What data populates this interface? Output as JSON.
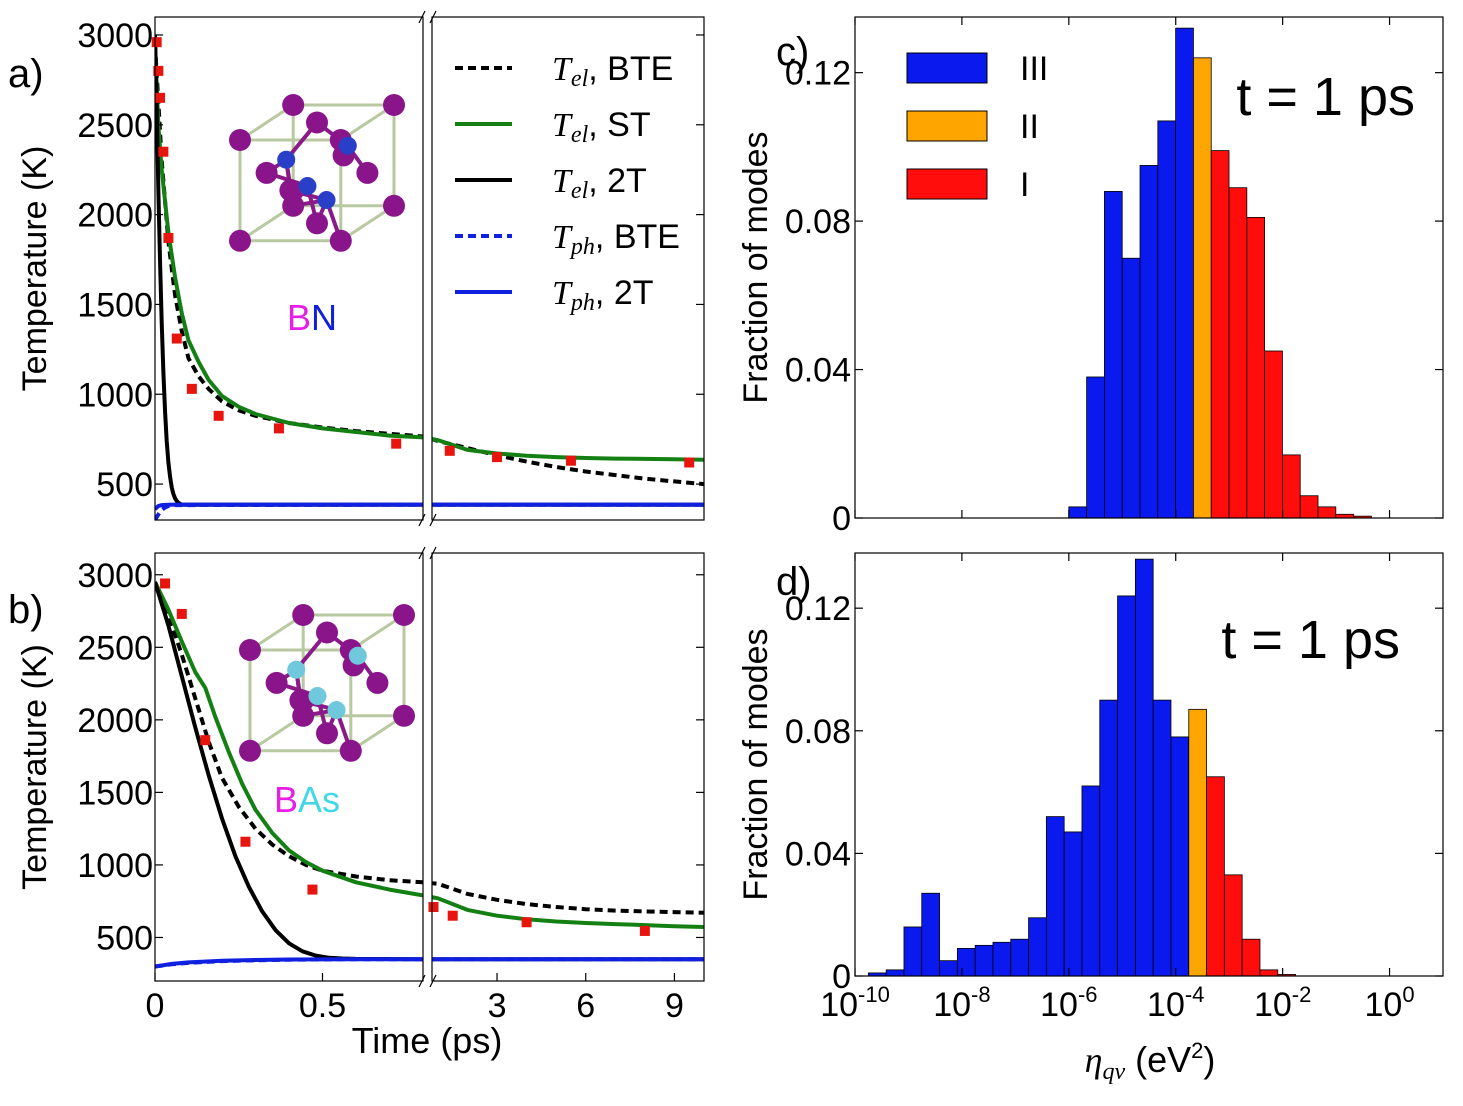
{
  "chart_data": [
    {
      "id": "a",
      "panel_label": "a)",
      "type": "line",
      "ylabel": "Temperature (K)",
      "yticks": [
        500,
        1000,
        1500,
        2000,
        2500,
        3000
      ],
      "ylim": [
        300,
        3100
      ],
      "left_xlim": [
        0,
        0.8
      ],
      "right_xlim": [
        0.8,
        10
      ],
      "material": {
        "parts": [
          "B",
          "N"
        ],
        "colors": [
          "#e61ee6",
          "#1020d8"
        ]
      },
      "legend": [
        {
          "math": "T",
          "sub": "el",
          "suffix": ", BTE",
          "color": "#000000",
          "dash": true
        },
        {
          "math": "T",
          "sub": "el",
          "suffix": ", ST",
          "color": "#148014",
          "dash": false
        },
        {
          "math": "T",
          "sub": "el",
          "suffix": ", 2T",
          "color": "#000000",
          "dash": false
        },
        {
          "math": "T",
          "sub": "ph",
          "suffix": ", BTE",
          "color": "#1020e0",
          "dash": true
        },
        {
          "math": "T",
          "sub": "ph",
          "suffix": ", 2T",
          "color": "#1020e0",
          "dash": false
        }
      ],
      "series": [
        {
          "name": "Tel BTE",
          "color": "#000000",
          "dash": true,
          "x": [
            0,
            0.02,
            0.04,
            0.06,
            0.08,
            0.1,
            0.13,
            0.16,
            0.2,
            0.25,
            0.3,
            0.4,
            0.5,
            0.6,
            0.7,
            0.8,
            1,
            2,
            3,
            4,
            5,
            6,
            7,
            8,
            9,
            10
          ],
          "y": [
            2950,
            2300,
            1850,
            1550,
            1350,
            1200,
            1100,
            1030,
            960,
            910,
            880,
            840,
            815,
            795,
            780,
            765,
            740,
            700,
            660,
            625,
            595,
            570,
            550,
            530,
            515,
            500
          ]
        },
        {
          "name": "Tel ST",
          "color": "#148014",
          "dash": false,
          "x": [
            0,
            0.01,
            0.02,
            0.04,
            0.06,
            0.08,
            0.1,
            0.13,
            0.16,
            0.2,
            0.25,
            0.3,
            0.4,
            0.5,
            0.6,
            0.7,
            0.8,
            1,
            2,
            3,
            4,
            5,
            6,
            7,
            8,
            9,
            10
          ],
          "y": [
            2950,
            2500,
            2250,
            1900,
            1650,
            1450,
            1300,
            1180,
            1080,
            990,
            930,
            890,
            840,
            810,
            790,
            770,
            760,
            745,
            690,
            670,
            658,
            650,
            645,
            642,
            640,
            638,
            635
          ]
        },
        {
          "name": "Tel 2T",
          "color": "#000000",
          "dash": false,
          "x": [
            0,
            0.005,
            0.01,
            0.015,
            0.02,
            0.025,
            0.03,
            0.035,
            0.04,
            0.045,
            0.05,
            0.055,
            0.06,
            0.065,
            0.07,
            0.08,
            0.1,
            0.8,
            10
          ],
          "y": [
            3000,
            2600,
            2150,
            1750,
            1400,
            1120,
            900,
            740,
            620,
            540,
            480,
            445,
            420,
            405,
            395,
            385,
            385,
            385,
            385
          ]
        },
        {
          "name": "Tph BTE",
          "color": "#1020e0",
          "dash": true,
          "x": [
            0,
            0.01,
            0.02,
            0.03,
            0.04,
            0.06,
            0.8,
            10
          ],
          "y": [
            300,
            330,
            355,
            370,
            378,
            383,
            385,
            385
          ]
        },
        {
          "name": "Tph 2T",
          "color": "#1020e0",
          "dash": false,
          "x": [
            0,
            0.01,
            0.02,
            0.04,
            0.06,
            0.8,
            10
          ],
          "y": [
            360,
            378,
            383,
            385,
            386,
            386,
            386
          ]
        }
      ],
      "markers": {
        "color": "#e8150f",
        "x": [
          0.005,
          0.01,
          0.015,
          0.025,
          0.04,
          0.065,
          0.11,
          0.19,
          0.37,
          0.72,
          1.4,
          3.0,
          5.5,
          9.5
        ],
        "y": [
          2960,
          2800,
          2650,
          2350,
          1870,
          1310,
          1030,
          880,
          810,
          725,
          685,
          650,
          630,
          620
        ]
      }
    },
    {
      "id": "b",
      "panel_label": "b)",
      "type": "line",
      "ylabel": "Temperature (K)",
      "xlabel": "Time (ps)",
      "yticks": [
        500,
        1000,
        1500,
        2000,
        2500,
        3000
      ],
      "ylim": [
        200,
        3150
      ],
      "left_xlim": [
        0,
        0.8
      ],
      "right_xlim": [
        0.8,
        10
      ],
      "left_xticks": [
        {
          "v": 0,
          "label": "0"
        },
        {
          "v": 0.5,
          "label": "0.5"
        }
      ],
      "right_xticks": [
        {
          "v": 3,
          "label": "3"
        },
        {
          "v": 6,
          "label": "6"
        },
        {
          "v": 9,
          "label": "9"
        }
      ],
      "material": {
        "parts": [
          "B",
          "As"
        ],
        "colors": [
          "#e61ee6",
          "#40d8e8"
        ]
      },
      "series": [
        {
          "name": "Tel BTE",
          "color": "#000000",
          "dash": true,
          "x": [
            0,
            0.04,
            0.08,
            0.12,
            0.16,
            0.2,
            0.25,
            0.3,
            0.35,
            0.4,
            0.45,
            0.5,
            0.6,
            0.7,
            0.8,
            1,
            2,
            3,
            4,
            5,
            6,
            7,
            8,
            9,
            10
          ],
          "y": [
            2950,
            2720,
            2450,
            2150,
            1850,
            1600,
            1400,
            1250,
            1140,
            1060,
            1000,
            960,
            920,
            895,
            880,
            870,
            800,
            760,
            730,
            710,
            695,
            685,
            680,
            675,
            670
          ]
        },
        {
          "name": "Tel ST",
          "color": "#148014",
          "dash": false,
          "x": [
            0,
            0.04,
            0.08,
            0.12,
            0.15,
            0.18,
            0.22,
            0.26,
            0.3,
            0.35,
            0.4,
            0.45,
            0.5,
            0.6,
            0.7,
            0.8,
            1,
            2,
            3,
            4,
            5,
            6,
            7,
            8,
            9,
            10
          ],
          "y": [
            2950,
            2760,
            2540,
            2330,
            2220,
            2020,
            1780,
            1560,
            1380,
            1220,
            1100,
            1020,
            960,
            880,
            830,
            790,
            770,
            690,
            650,
            625,
            610,
            600,
            592,
            585,
            578,
            572
          ]
        },
        {
          "name": "Tel 2T",
          "color": "#000000",
          "dash": false,
          "x": [
            0,
            0.04,
            0.08,
            0.12,
            0.16,
            0.2,
            0.24,
            0.28,
            0.32,
            0.36,
            0.4,
            0.44,
            0.48,
            0.52,
            0.56,
            0.6,
            0.8,
            10
          ],
          "y": [
            2950,
            2650,
            2300,
            1950,
            1620,
            1320,
            1060,
            850,
            680,
            550,
            460,
            405,
            375,
            360,
            355,
            352,
            350,
            350
          ]
        },
        {
          "name": "Tph BTE",
          "color": "#1020e0",
          "dash": true,
          "x": [
            0,
            0.05,
            0.1,
            0.2,
            0.3,
            0.4,
            0.6,
            0.8,
            10
          ],
          "y": [
            300,
            315,
            325,
            337,
            343,
            347,
            350,
            350,
            350
          ]
        },
        {
          "name": "Tph 2T",
          "color": "#1020e0",
          "dash": false,
          "x": [
            0,
            0.05,
            0.1,
            0.2,
            0.3,
            0.4,
            0.6,
            0.8,
            10
          ],
          "y": [
            300,
            318,
            328,
            340,
            345,
            348,
            350,
            350,
            350
          ]
        }
      ],
      "markers": {
        "color": "#e8150f",
        "x": [
          0.03,
          0.08,
          0.15,
          0.27,
          0.47,
          0.85,
          1.5,
          4.0,
          8.0
        ],
        "y": [
          2940,
          2730,
          1860,
          1160,
          830,
          710,
          650,
          605,
          545
        ]
      }
    },
    {
      "id": "c",
      "panel_label": "c)",
      "type": "bar",
      "ylabel": "Fraction of modes",
      "annotation": "t = 1 ps",
      "ylim": [
        0,
        0.135
      ],
      "yticks": [
        {
          "v": 0,
          "label": "0"
        },
        {
          "v": 0.04,
          "label": "0.04"
        },
        {
          "v": 0.08,
          "label": "0.08"
        },
        {
          "v": 0.12,
          "label": "0.12"
        }
      ],
      "xlim_log10": [
        -10,
        1
      ],
      "bin_width_log10": 0.333,
      "legend": [
        {
          "label": "III",
          "color": "#0a1aee"
        },
        {
          "label": "II",
          "color": "#ffa500"
        },
        {
          "label": "I",
          "color": "#ff0d0d"
        }
      ],
      "bins_start_log10": -6.0,
      "values": [
        0.003,
        0.038,
        0.088,
        0.07,
        0.095,
        0.107,
        0.132,
        0.124,
        0.099,
        0.089,
        0.081,
        0.045,
        0.017,
        0.006,
        0.003,
        0.001,
        0.0005
      ],
      "regions": [
        "III",
        "III",
        "III",
        "III",
        "III",
        "III",
        "III",
        "II",
        "I",
        "I",
        "I",
        "I",
        "I",
        "I",
        "I",
        "I",
        "I"
      ]
    },
    {
      "id": "d",
      "panel_label": "d)",
      "type": "bar",
      "ylabel": "Fraction of modes",
      "xlabel_math": "η",
      "xlabel_sub": "qν",
      "xlabel_text": " (eV",
      "xlabel_sup": "2",
      "xlabel_end": ")",
      "annotation": "t = 1 ps",
      "ylim": [
        0,
        0.138
      ],
      "yticks": [
        {
          "v": 0,
          "label": "0"
        },
        {
          "v": 0.04,
          "label": "0.04"
        },
        {
          "v": 0.08,
          "label": "0.08"
        },
        {
          "v": 0.12,
          "label": "0.12"
        }
      ],
      "xlim_log10": [
        -10,
        1
      ],
      "xticks": [
        {
          "exp": -10,
          "base": "10",
          "sup": "-10"
        },
        {
          "exp": -8,
          "base": "10",
          "sup": "-8"
        },
        {
          "exp": -6,
          "base": "10",
          "sup": "-6"
        },
        {
          "exp": -4,
          "base": "10",
          "sup": "-4"
        },
        {
          "exp": -2,
          "base": "10",
          "sup": "-2"
        },
        {
          "exp": 0,
          "base": "10",
          "sup": "0"
        }
      ],
      "bins_start_log10": -9.75,
      "values": [
        0.001,
        0.002,
        0.016,
        0.027,
        0.005,
        0.009,
        0.01,
        0.011,
        0.012,
        0.019,
        0.052,
        0.047,
        0.062,
        0.09,
        0.124,
        0.136,
        0.09,
        0.078,
        0.087,
        0.065,
        0.033,
        0.012,
        0.002,
        0.0005
      ],
      "regions": [
        "III",
        "III",
        "III",
        "III",
        "III",
        "III",
        "III",
        "III",
        "III",
        "III",
        "III",
        "III",
        "III",
        "III",
        "III",
        "III",
        "III",
        "III",
        "II",
        "I",
        "I",
        "I",
        "I",
        "I"
      ]
    }
  ]
}
